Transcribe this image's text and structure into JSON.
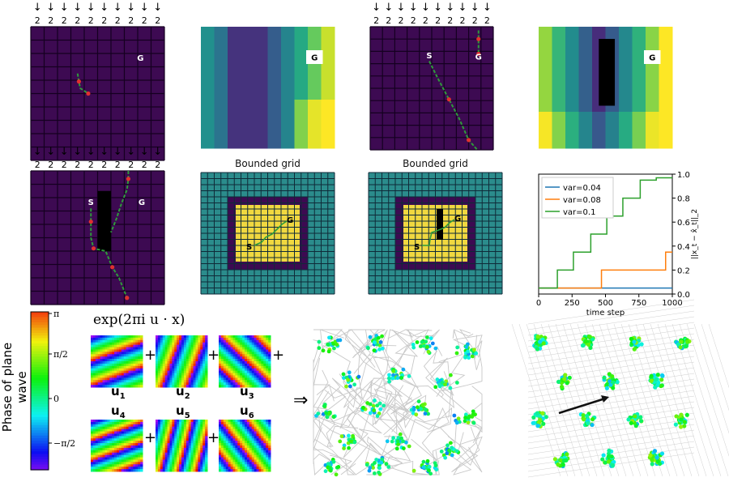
{
  "top_panels": {
    "p1": {
      "arrow_glyph": "↓",
      "arrow_value": "2",
      "goal": "G"
    },
    "p3": {
      "arrow_glyph": "↓",
      "arrow_value": "2",
      "start": "S",
      "goal": "G"
    },
    "p2": {
      "goal": "G"
    },
    "p4": {
      "goal": "G"
    },
    "p5": {
      "arrow_glyph": "↓",
      "arrow_value": "2",
      "start": "S",
      "goal": "G"
    },
    "p6": {
      "title": "Bounded grid",
      "start": "S",
      "goal": "G"
    },
    "p7": {
      "title": "Bounded grid",
      "start": "S",
      "goal": "G"
    }
  },
  "chart_data": {
    "type": "line",
    "title": "",
    "xlabel": "time step",
    "ylabel": "||x_t − x̂_t||_2",
    "xlim": [
      0,
      1000
    ],
    "ylim": [
      0,
      1.0
    ],
    "xticks": [
      "0",
      "250",
      "500",
      "750",
      "1000"
    ],
    "yticks": [
      "0.0",
      "0.2",
      "0.4",
      "0.6",
      "0.8",
      "1.0"
    ],
    "legend_position": "top-left",
    "series": [
      {
        "name": "var=0.04",
        "color": "#1f77b4",
        "x": [
          0,
          1000
        ],
        "y": [
          0.05,
          0.05
        ]
      },
      {
        "name": "var=0.08",
        "color": "#ff7f0e",
        "x": [
          0,
          470,
          470,
          950,
          950,
          1000
        ],
        "y": [
          0.05,
          0.05,
          0.2,
          0.2,
          0.35,
          0.35
        ]
      },
      {
        "name": "var=0.1",
        "color": "#2ca02c",
        "x": [
          0,
          140,
          140,
          260,
          260,
          390,
          390,
          510,
          510,
          630,
          630,
          760,
          760,
          880,
          880,
          1000
        ],
        "y": [
          0.05,
          0.05,
          0.2,
          0.2,
          0.35,
          0.35,
          0.5,
          0.5,
          0.65,
          0.65,
          0.8,
          0.8,
          0.95,
          0.95,
          0.97,
          0.97
        ]
      }
    ]
  },
  "colorbar": {
    "label": "Phase of plane wave",
    "ticks": [
      "π",
      "π/2",
      "0",
      "−π/2"
    ]
  },
  "formula": "exp(2πi u · x)",
  "plus": "+",
  "implies": "⇒",
  "vectors": [
    "u1",
    "u2",
    "u3",
    "u4",
    "u5",
    "u6"
  ],
  "vector_names": [
    "u",
    "u",
    "u",
    "u",
    "u",
    "u"
  ],
  "vector_subs": [
    "1",
    "2",
    "3",
    "4",
    "5",
    "6"
  ]
}
